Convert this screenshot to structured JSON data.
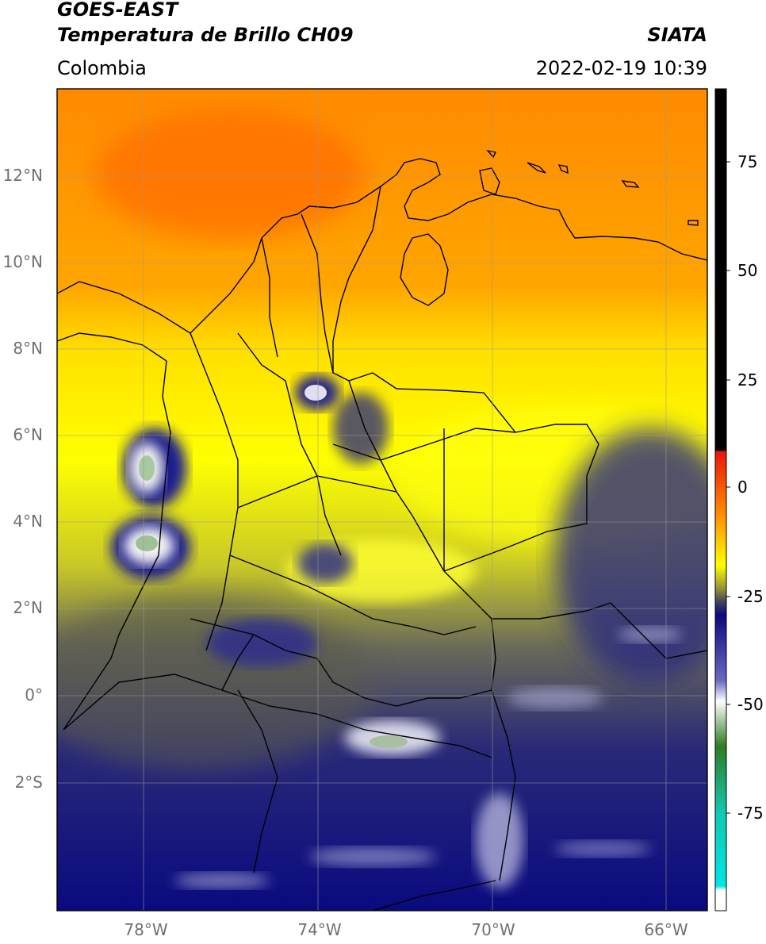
{
  "header": {
    "satellite": "GOES-EAST",
    "product": "Temperatura de Brillo CH09",
    "agency": "SIATA",
    "region": "Colombia",
    "datetime": "2022-02-19 10:39"
  },
  "map": {
    "lat_labels": [
      "12°N",
      "10°N",
      "8°N",
      "6°N",
      "4°N",
      "2°N",
      "0°",
      "2°S"
    ],
    "lat_values": [
      12,
      10,
      8,
      6,
      4,
      2,
      0,
      -2
    ],
    "lon_labels": [
      "78°W",
      "74°W",
      "70°W",
      "66°W"
    ],
    "lon_values": [
      -78,
      -74,
      -70,
      -66
    ],
    "lat_range": [
      -5.0,
      14.0
    ],
    "lon_range": [
      -80.0,
      -65.0
    ],
    "gridlines": true
  },
  "colorbar": {
    "tick_labels": [
      "75",
      "50",
      "25",
      "0",
      "-25",
      "-50",
      "-75"
    ],
    "tick_values": [
      75,
      50,
      25,
      0,
      -25,
      -50,
      -75
    ],
    "range": [
      -100,
      90
    ],
    "colors": {
      "warm_black": "#000000",
      "red": "#e8150a",
      "orange": "#ff8c00",
      "yellow": "#ffff00",
      "olive": "#8a8a3a",
      "navy": "#0a0a80",
      "white": "#ffffff",
      "green": "#2e7d22",
      "teal": "#10c8b0",
      "cyan": "#00e5e5"
    }
  }
}
